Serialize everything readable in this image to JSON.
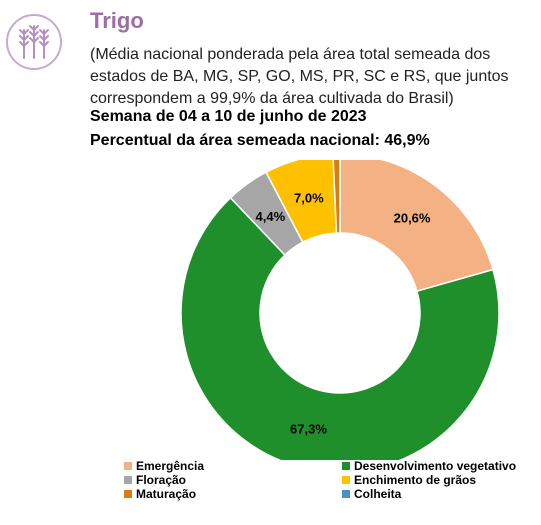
{
  "header": {
    "icon": "wheat-icon",
    "title": "Trigo",
    "subtitle": "(Média nacional ponderada pela área total semeada dos estados de BA, MG, SP, GO, MS, PR, SC e RS, que juntos correspondem a 99,9% da área cultivada do Brasil)",
    "week": "Semana de 04 a 10 de junho de 2023",
    "national_pct": "Percentual da área semeada nacional: 46,9%"
  },
  "colors": {
    "title": "#9b6fa6",
    "icon": "#b48fc0"
  },
  "chart_data": {
    "type": "pie",
    "donut": true,
    "categories": [
      "Emergência",
      "Desenvolvimento vegetativo",
      "Floração",
      "Enchimento de grãos",
      "Maturação",
      "Colheita"
    ],
    "values": [
      20.6,
      67.3,
      4.4,
      7.0,
      0.7,
      0.0
    ],
    "labels": [
      "20,6%",
      "67,3%",
      "4,4%",
      "7,0%",
      "",
      ""
    ],
    "colors": [
      "#f4b183",
      "#1e8f2a",
      "#a6a6a6",
      "#ffc000",
      "#d97d0f",
      "#4a90c8"
    ],
    "start": "12 o'clock, clockwise",
    "legend_position": "bottom"
  }
}
